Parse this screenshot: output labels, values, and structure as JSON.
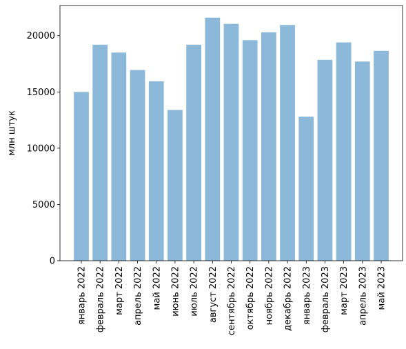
{
  "chart_data": {
    "type": "bar",
    "ylabel": "млн штук",
    "xlabel": "",
    "title": "",
    "ylim": [
      0,
      22680
    ],
    "yticks": [
      0,
      5000,
      10000,
      15000,
      20000
    ],
    "grid": false,
    "bar_color": "#8cb8d9",
    "categories": [
      "январь 2022",
      "февраль 2022",
      "март 2022",
      "апрель 2022",
      "май 2022",
      "июнь 2022",
      "июль 2022",
      "август 2022",
      "сентябрь 2022",
      "октябрь 2022",
      "ноябрь 2022",
      "декабрь 2022",
      "январь 2023",
      "февраль 2023",
      "март 2023",
      "апрель 2023",
      "май 2023"
    ],
    "values": [
      15000,
      19200,
      18500,
      16950,
      15950,
      13400,
      19200,
      21600,
      21050,
      19600,
      20300,
      20950,
      12800,
      17850,
      19400,
      17700,
      18650
    ]
  }
}
